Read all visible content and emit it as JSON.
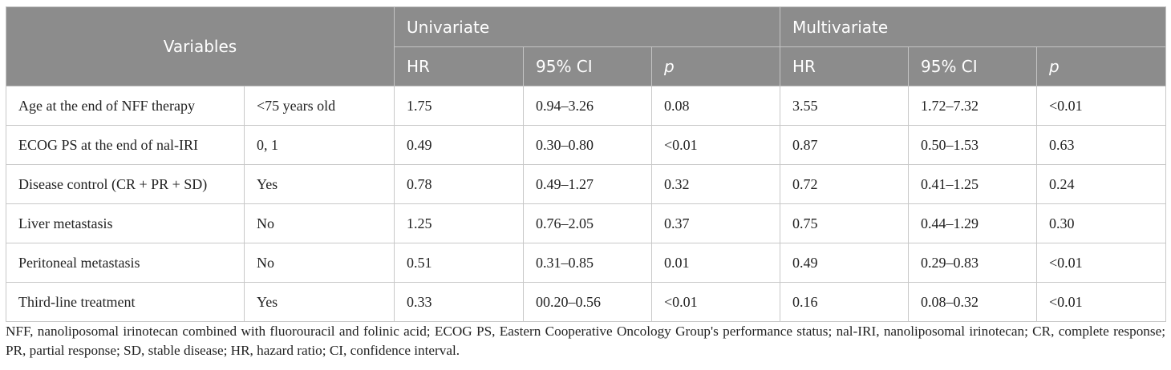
{
  "table": {
    "header": {
      "variables": "Variables",
      "univariate": "Univariate",
      "multivariate": "Multivariate",
      "hr": "HR",
      "ci": "95% CI",
      "p": "p"
    },
    "rows": [
      {
        "variable": "Age at the end of NFF therapy",
        "category": "<75 years old",
        "uni_hr": "1.75",
        "uni_ci": "0.94–3.26",
        "uni_p": "0.08",
        "multi_hr": "3.55",
        "multi_ci": "1.72–7.32",
        "multi_p": "<0.01"
      },
      {
        "variable": "ECOG PS at the end of nal-IRI",
        "category": "0, 1",
        "uni_hr": "0.49",
        "uni_ci": "0.30–0.80",
        "uni_p": "<0.01",
        "multi_hr": "0.87",
        "multi_ci": "0.50–1.53",
        "multi_p": "0.63"
      },
      {
        "variable": "Disease control (CR + PR + SD)",
        "category": "Yes",
        "uni_hr": "0.78",
        "uni_ci": "0.49–1.27",
        "uni_p": "0.32",
        "multi_hr": "0.72",
        "multi_ci": "0.41–1.25",
        "multi_p": "0.24"
      },
      {
        "variable": "Liver metastasis",
        "category": "No",
        "uni_hr": "1.25",
        "uni_ci": "0.76–2.05",
        "uni_p": "0.37",
        "multi_hr": "0.75",
        "multi_ci": "0.44–1.29",
        "multi_p": "0.30"
      },
      {
        "variable": "Peritoneal metastasis",
        "category": "No",
        "uni_hr": "0.51",
        "uni_ci": "0.31–0.85",
        "uni_p": "0.01",
        "multi_hr": "0.49",
        "multi_ci": "0.29–0.83",
        "multi_p": "<0.01"
      },
      {
        "variable": "Third-line treatment",
        "category": "Yes",
        "uni_hr": "0.33",
        "uni_ci": "00.20–0.56",
        "uni_p": "<0.01",
        "multi_hr": "0.16",
        "multi_ci": "0.08–0.32",
        "multi_p": "<0.01"
      }
    ]
  },
  "footnote": "NFF, nanoliposomal irinotecan combined with fluorouracil and folinic acid; ECOG PS, Eastern Cooperative Oncology Group's performance status; nal-IRI, nanoliposomal irinotecan; CR, complete response; PR, partial response; SD, stable disease; HR, hazard ratio; CI, confidence interval.",
  "colors": {
    "header_bg": "#8c8c8c",
    "header_text": "#ffffff",
    "border": "#c8c8c8",
    "body_text": "#222222"
  }
}
